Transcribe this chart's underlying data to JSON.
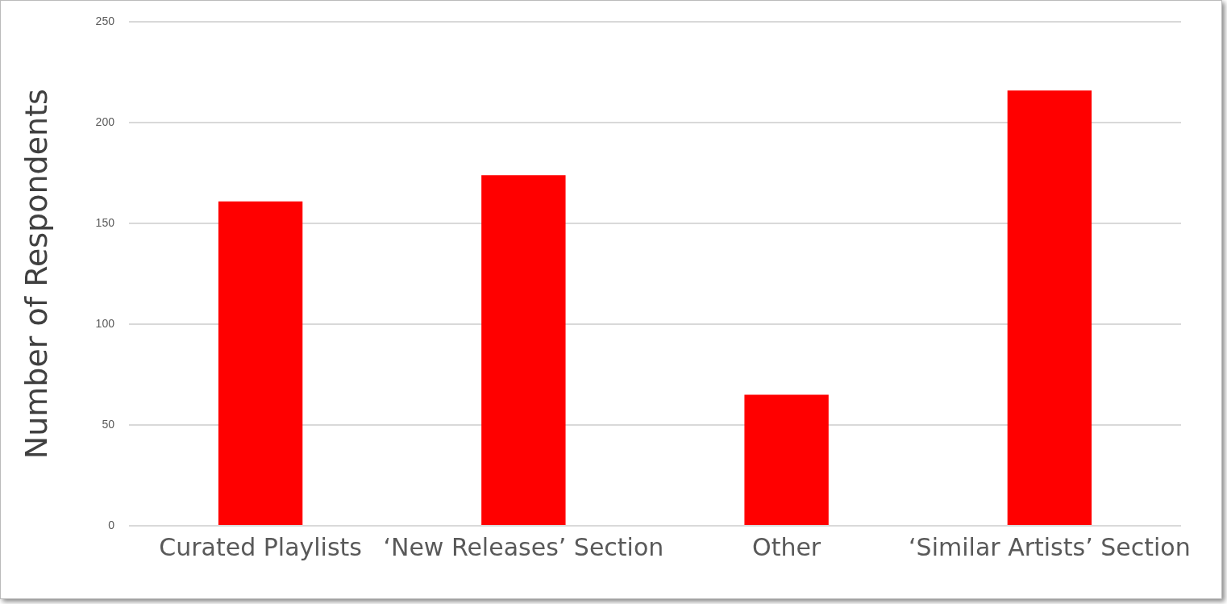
{
  "chart_data": {
    "type": "bar",
    "ylabel": "Number of Respondents",
    "categories": [
      "Curated Playlists",
      "‘New Releases’ Section",
      "Other",
      "‘Similar Artists’ Section"
    ],
    "values": [
      161,
      174,
      65,
      216
    ],
    "color": "#ff0000",
    "ylim": [
      0,
      250
    ],
    "yticks": [
      0,
      50,
      100,
      150,
      200,
      250
    ],
    "grid": "y"
  }
}
